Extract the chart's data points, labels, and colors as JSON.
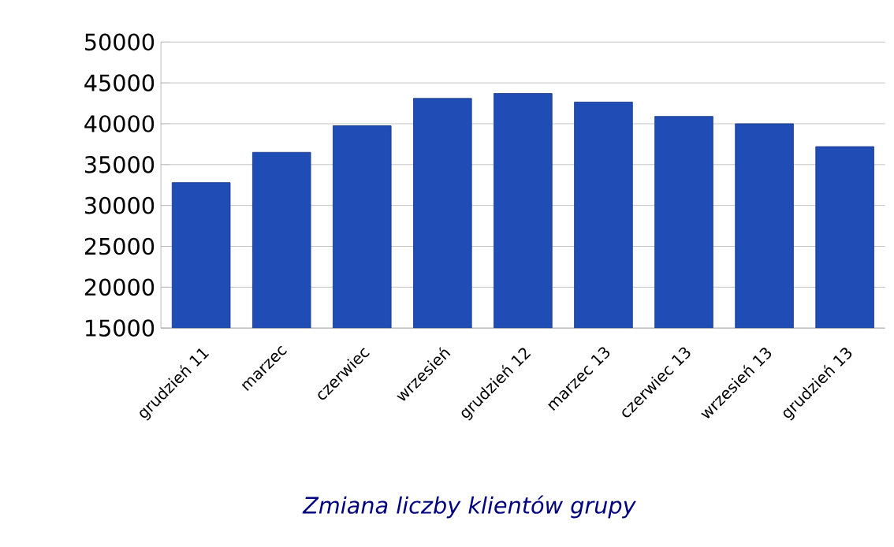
{
  "chart_data": {
    "type": "bar",
    "categories": [
      "grudzień 11",
      "marzec",
      "czerwiec",
      "wrzesień",
      "grudzień 12",
      "marzec 13",
      "czerwiec 13",
      "wrzesień 13",
      "grudzień 13"
    ],
    "values": [
      32800,
      36500,
      39750,
      43100,
      43700,
      42650,
      40900,
      40000,
      37200
    ],
    "color": "#1f4db5",
    "ylim": [
      15000,
      50000
    ],
    "yticks": [
      15000,
      20000,
      25000,
      30000,
      35000,
      40000,
      45000,
      50000
    ],
    "grid": "y",
    "annotations": [
      "Zmiana liczby klientów grupy"
    ]
  }
}
